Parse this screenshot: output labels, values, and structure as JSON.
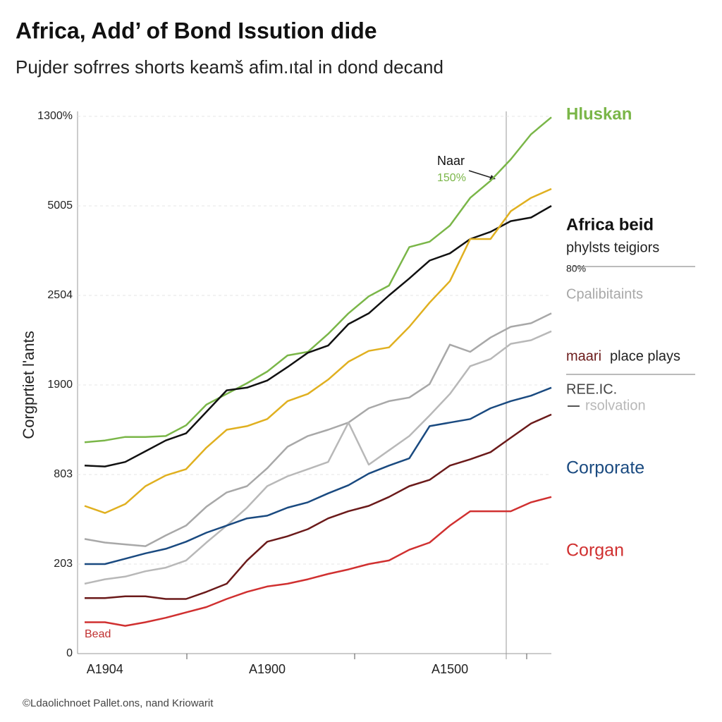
{
  "title": "Africa, Add’ of Bond Issution dide",
  "subtitle": "Pujder sofrres shorts keamš afim.ıtal in dond decand",
  "footer": "©Ldaolichnoet Pallet.ons, nand Kriowarit",
  "annotations": {
    "naar": "Naar",
    "naar_value": "150%",
    "phylsts": "phylsts teigiors",
    "pct": "80%",
    "place": "place plays",
    "reeic": "REE.IC.",
    "bead": "Bead"
  },
  "chart_data": {
    "type": "line",
    "y_label": "Corgprtiet l'ants",
    "categories": [
      null,
      "A1904",
      null,
      null,
      null,
      null,
      null,
      null,
      null,
      "A1900",
      null,
      null,
      null,
      null,
      null,
      null,
      null,
      null,
      "A1500",
      null,
      null,
      null,
      null,
      null
    ],
    "ylim": [
      0,
      6
    ],
    "yticks": [
      {
        "value": 0,
        "label": "0"
      },
      {
        "value": 1,
        "label": "203"
      },
      {
        "value": 2,
        "label": "803"
      },
      {
        "value": 3,
        "label": "1900"
      },
      {
        "value": 4,
        "label": "2504"
      },
      {
        "value": 5,
        "label": "5005"
      },
      {
        "value": 6,
        "label": "1300%"
      }
    ],
    "grid": true,
    "series": [
      {
        "name": "Hluskan",
        "color": "#7ab648",
        "values": [
          2.36,
          2.38,
          2.42,
          2.42,
          2.43,
          2.55,
          2.78,
          2.9,
          3.02,
          3.15,
          3.33,
          3.37,
          3.57,
          3.8,
          3.99,
          4.11,
          4.54,
          4.6,
          4.78,
          5.09,
          5.28,
          5.52,
          5.8,
          5.99
        ]
      },
      {
        "name": "Africa beid",
        "color": "#111111",
        "values": [
          2.1,
          2.09,
          2.14,
          2.26,
          2.38,
          2.46,
          2.7,
          2.94,
          2.97,
          3.05,
          3.2,
          3.36,
          3.44,
          3.68,
          3.8,
          4.0,
          4.19,
          4.39,
          4.47,
          4.63,
          4.71,
          4.83,
          4.87,
          5.0
        ]
      },
      {
        "color": "#e0b020",
        "values": [
          1.65,
          1.57,
          1.67,
          1.87,
          1.99,
          2.06,
          2.3,
          2.5,
          2.54,
          2.62,
          2.82,
          2.9,
          3.06,
          3.26,
          3.38,
          3.42,
          3.65,
          3.92,
          4.16,
          4.63,
          4.63,
          4.94,
          5.09,
          5.19
        ]
      },
      {
        "name": "Cpalibitaints",
        "color": "#a8a8a8",
        "values": [
          1.28,
          1.24,
          1.22,
          1.2,
          1.32,
          1.43,
          1.64,
          1.8,
          1.87,
          2.07,
          2.31,
          2.43,
          2.5,
          2.58,
          2.74,
          2.82,
          2.86,
          3.01,
          3.45,
          3.37,
          3.53,
          3.65,
          3.69,
          3.8
        ]
      },
      {
        "name": "rsolvation",
        "color": "#b8b8b8",
        "values": [
          0.78,
          0.83,
          0.86,
          0.92,
          0.96,
          1.04,
          1.24,
          1.43,
          1.63,
          1.87,
          1.98,
          2.06,
          2.14,
          2.58,
          2.11,
          2.27,
          2.43,
          2.66,
          2.9,
          3.21,
          3.29,
          3.46,
          3.5,
          3.6
        ]
      },
      {
        "name": "Corporate",
        "color": "#1a4a80",
        "values": [
          1.0,
          1.0,
          1.06,
          1.12,
          1.17,
          1.25,
          1.35,
          1.43,
          1.51,
          1.54,
          1.63,
          1.69,
          1.79,
          1.88,
          2.01,
          2.1,
          2.18,
          2.54,
          2.58,
          2.62,
          2.74,
          2.82,
          2.88,
          2.97
        ]
      },
      {
        "name": "maari",
        "color": "#6b1a1a",
        "values": [
          0.62,
          0.62,
          0.64,
          0.64,
          0.61,
          0.61,
          0.69,
          0.78,
          1.04,
          1.25,
          1.31,
          1.39,
          1.51,
          1.59,
          1.65,
          1.75,
          1.87,
          1.94,
          2.1,
          2.17,
          2.25,
          2.41,
          2.57,
          2.67
        ]
      },
      {
        "name": "Corgan",
        "color": "#d03030",
        "values": [
          0.35,
          0.35,
          0.31,
          0.35,
          0.4,
          0.46,
          0.52,
          0.61,
          0.69,
          0.75,
          0.78,
          0.83,
          0.89,
          0.94,
          1.0,
          1.04,
          1.16,
          1.24,
          1.43,
          1.59,
          1.59,
          1.59,
          1.69,
          1.75
        ]
      }
    ]
  }
}
